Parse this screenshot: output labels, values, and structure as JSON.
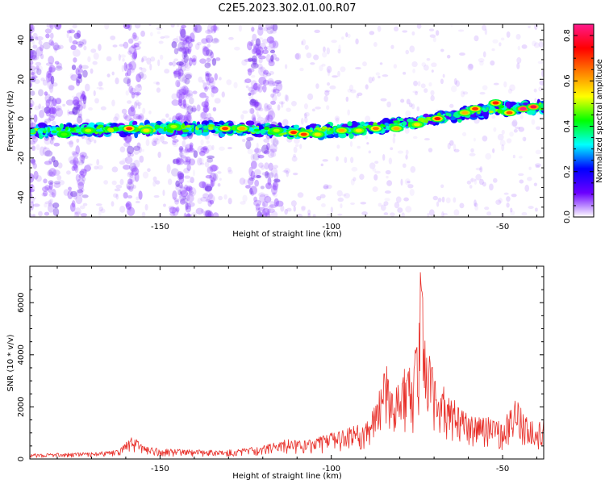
{
  "title": "C2E5.2023.302.01.00.R07",
  "chart_data": [
    {
      "type": "heatmap",
      "xlabel": "Height of straight line (km)",
      "ylabel": "Frequency (Hz)",
      "xlim": [
        -188,
        -38
      ],
      "ylim": [
        -50,
        48
      ],
      "xticks": [
        -150,
        -100,
        -50
      ],
      "yticks": [
        -40,
        -20,
        0,
        20,
        40
      ],
      "colorbar": {
        "label": "Normalized spectral amplitude",
        "range": [
          0,
          0.85
        ],
        "ticks": [
          0,
          0.2,
          0.4,
          0.6,
          0.8
        ],
        "tick_labels": [
          "0.0",
          "0.2",
          "0.4",
          "0.6",
          "0.8"
        ],
        "colormap": [
          "#ffffff",
          "#6b00ff",
          "#0000ff",
          "#00ffff",
          "#00ff00",
          "#ffff00",
          "#ff8000",
          "#ff0000",
          "#ff1a8c"
        ]
      },
      "ridge": {
        "x": [
          -188,
          -170,
          -150,
          -130,
          -110,
          -100,
          -90,
          -80,
          -70,
          -60,
          -50,
          -40
        ],
        "frequency": [
          -6,
          -6,
          -5,
          -5,
          -7,
          -6,
          -5,
          -3,
          0,
          3,
          5,
          6
        ]
      },
      "hotspots": [
        {
          "x": -178,
          "frequency": -8,
          "value": 0.45
        },
        {
          "x": -171,
          "frequency": -6,
          "value": 0.5
        },
        {
          "x": -159,
          "frequency": -5,
          "value": 0.7
        },
        {
          "x": -154,
          "frequency": -6,
          "value": 0.55
        },
        {
          "x": -146,
          "frequency": -4,
          "value": 0.5
        },
        {
          "x": -131,
          "frequency": -5,
          "value": 0.7
        },
        {
          "x": -126,
          "frequency": -5,
          "value": 0.6
        },
        {
          "x": -116,
          "frequency": -6,
          "value": 0.5
        },
        {
          "x": -111,
          "frequency": -7,
          "value": 0.72
        },
        {
          "x": -108,
          "frequency": -8,
          "value": 0.7
        },
        {
          "x": -104,
          "frequency": -8,
          "value": 0.55
        },
        {
          "x": -97,
          "frequency": -6,
          "value": 0.6
        },
        {
          "x": -92,
          "frequency": -6,
          "value": 0.55
        },
        {
          "x": -87,
          "frequency": -5,
          "value": 0.65
        },
        {
          "x": -81,
          "frequency": -5,
          "value": 0.6
        },
        {
          "x": -75,
          "frequency": -3,
          "value": 0.55
        },
        {
          "x": -69,
          "frequency": 0,
          "value": 0.72
        },
        {
          "x": -61,
          "frequency": 3,
          "value": 0.6
        },
        {
          "x": -58,
          "frequency": 5,
          "value": 0.7
        },
        {
          "x": -52,
          "frequency": 8,
          "value": 0.72
        },
        {
          "x": -48,
          "frequency": 3,
          "value": 0.68
        },
        {
          "x": -44,
          "frequency": 5,
          "value": 0.85
        },
        {
          "x": -41,
          "frequency": 6,
          "value": 0.8
        }
      ],
      "noise_bands_x": [
        -188,
        -182,
        -174,
        -158,
        -144,
        -142,
        -136,
        -122,
        -118
      ]
    },
    {
      "type": "line",
      "xlabel": "Height of straight line (km)",
      "ylabel": "SNR (10 * v/v)",
      "xlim": [
        -188,
        -38
      ],
      "ylim": [
        0,
        7400
      ],
      "xticks": [
        -150,
        -100,
        -50
      ],
      "yticks": [
        0,
        2000,
        4000,
        6000
      ],
      "color": "#e8302a",
      "envelope": {
        "x": [
          -188,
          -170,
          -162,
          -158,
          -155,
          -150,
          -140,
          -130,
          -120,
          -112,
          -110,
          -105,
          -100,
          -95,
          -90,
          -87,
          -84,
          -82,
          -80,
          -78,
          -76,
          -74,
          -72,
          -70,
          -66,
          -62,
          -58,
          -54,
          -50,
          -48,
          -46,
          -44,
          -40,
          -38
        ],
        "snr": [
          200,
          250,
          350,
          900,
          500,
          400,
          350,
          350,
          500,
          800,
          700,
          800,
          1000,
          1200,
          1400,
          2200,
          4000,
          2500,
          3200,
          3700,
          3300,
          7300,
          4500,
          3200,
          2600,
          1900,
          1600,
          1600,
          1400,
          2000,
          2400,
          1800,
          1300,
          1600
        ]
      }
    }
  ]
}
